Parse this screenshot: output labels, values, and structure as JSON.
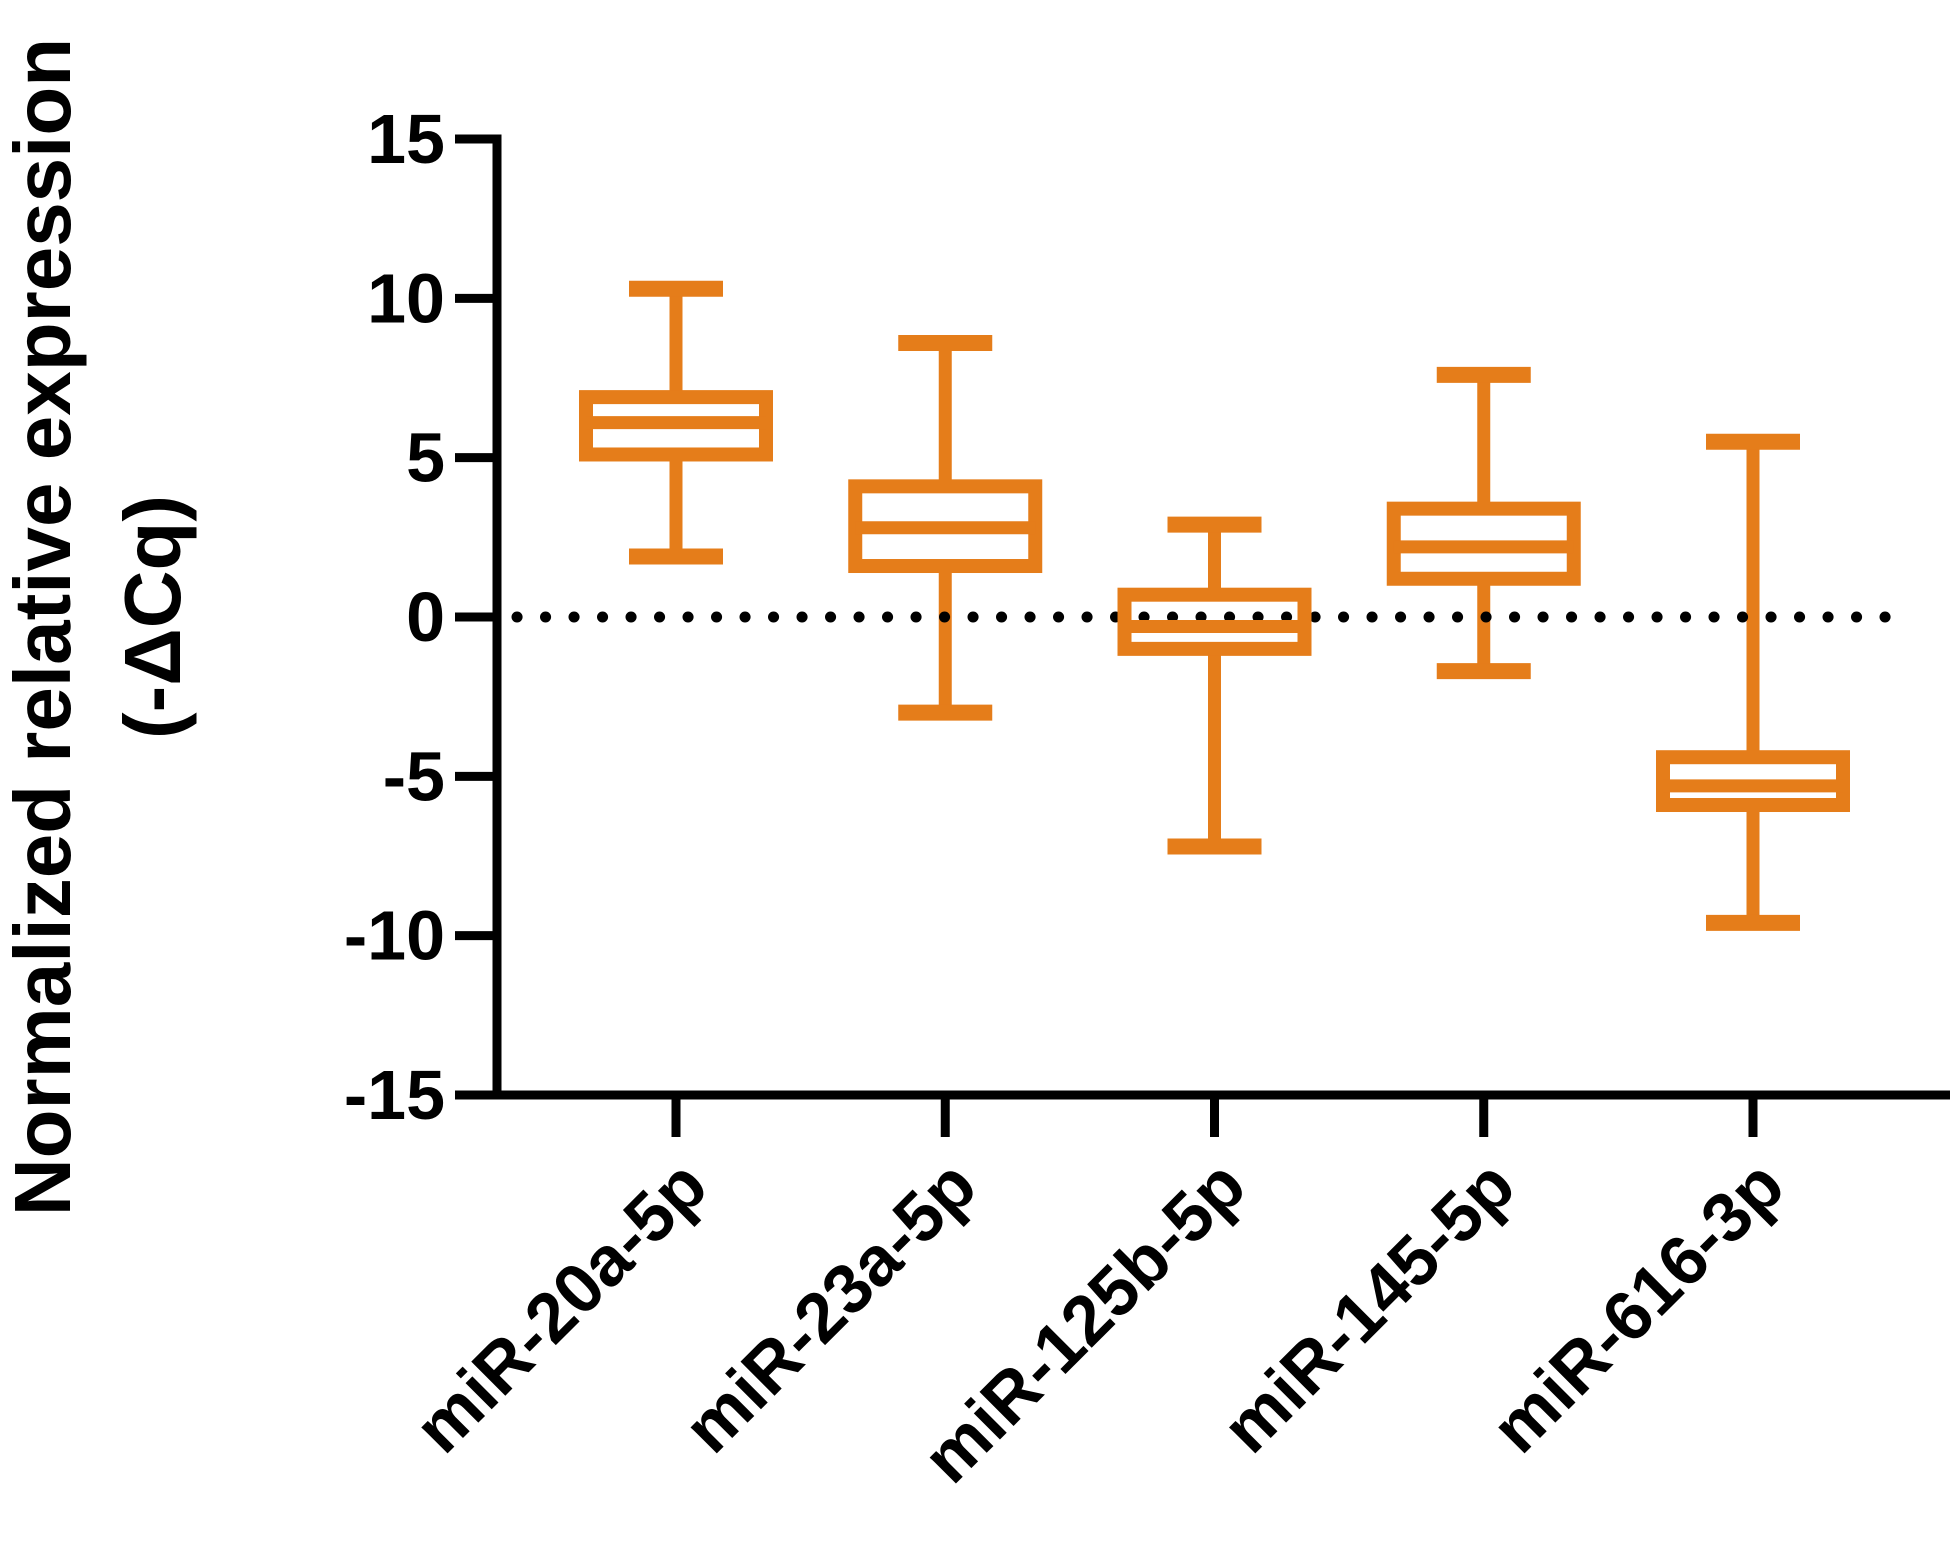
{
  "chart_data": {
    "type": "boxplot",
    "title": "",
    "ylabel_lines": [
      "Normalized relative expression",
      "(-ΔCq)"
    ],
    "xlabel": "",
    "categories": [
      "miR-20a-5p",
      "miR-23a-5p",
      "miR-125b-5p",
      "miR-145-5p",
      "miR-616-3p"
    ],
    "boxes": [
      {
        "category": "miR-20a-5p",
        "min": 1.9,
        "q1": 5.1,
        "median": 6.1,
        "q3": 6.9,
        "max": 10.3
      },
      {
        "category": "miR-23a-5p",
        "min": -3.0,
        "q1": 1.6,
        "median": 2.8,
        "q3": 4.1,
        "max": 8.6
      },
      {
        "category": "miR-125b-5p",
        "min": -7.2,
        "q1": -1.0,
        "median": -0.3,
        "q3": 0.7,
        "max": 2.9
      },
      {
        "category": "miR-145-5p",
        "min": -1.7,
        "q1": 1.2,
        "median": 2.2,
        "q3": 3.4,
        "max": 7.6
      },
      {
        "category": "miR-616-3p",
        "min": -9.6,
        "q1": -5.9,
        "median": -5.3,
        "q3": -4.4,
        "max": 5.5
      }
    ],
    "yticks": [
      15,
      10,
      5,
      0,
      -5,
      -10,
      -15
    ],
    "ytick_labels": [
      "15",
      "10",
      "5",
      "0",
      "-5",
      "-10",
      "-15"
    ],
    "ylim": [
      -15,
      15
    ],
    "reference_line_y": 0,
    "reference_line_style": "dotted",
    "grid": false,
    "legend": false,
    "colors": {
      "box": "#E57D1A",
      "axis": "#000000",
      "reference_dots": "#000000",
      "background": "#FFFFFF",
      "box_fill": "#FFFFFF"
    }
  }
}
